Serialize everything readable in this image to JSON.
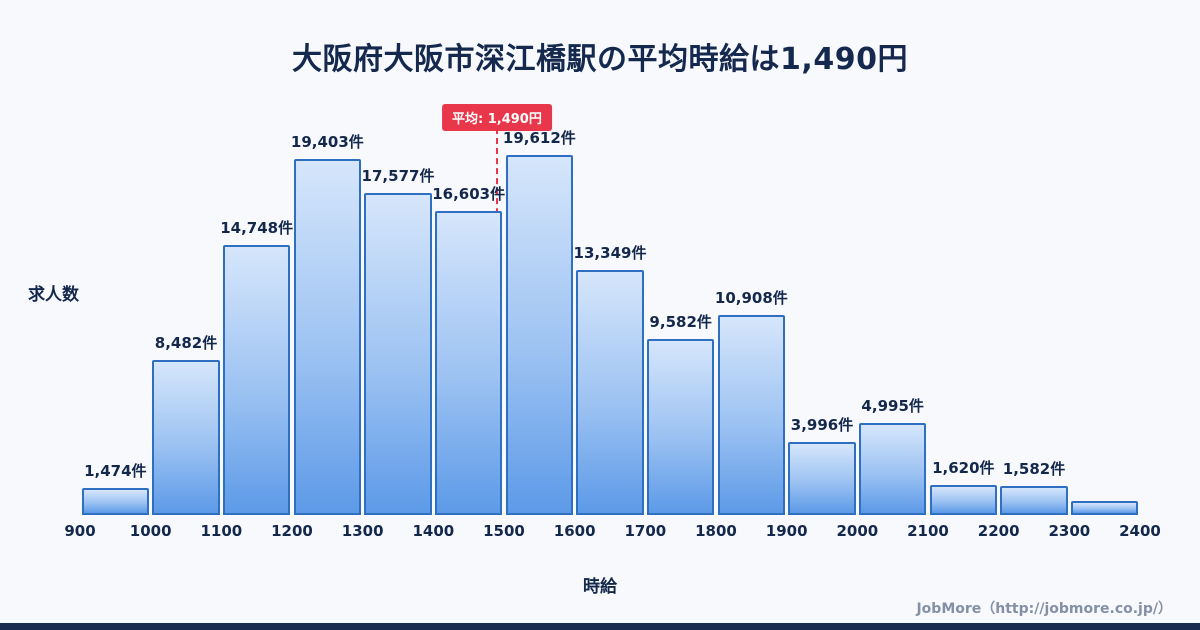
{
  "title": "大阪府大阪市深江橋駅の平均時給は1,490円",
  "footer": "JobMore（http://jobmore.co.jp/）",
  "chart_data": {
    "type": "bar",
    "title": "大阪府大阪市深江橋駅の平均時給は1,490円",
    "xlabel": "時給",
    "ylabel": "求人数",
    "x_ticks": [
      "900",
      "1000",
      "1100",
      "1200",
      "1300",
      "1400",
      "1500",
      "1600",
      "1700",
      "1800",
      "1900",
      "2000",
      "2100",
      "2200",
      "2300",
      "2400"
    ],
    "bins": [
      {
        "range": "900-1000",
        "value": 1474,
        "label": "1,474件"
      },
      {
        "range": "1000-1100",
        "value": 8482,
        "label": "8,482件"
      },
      {
        "range": "1100-1200",
        "value": 14748,
        "label": "14,748件"
      },
      {
        "range": "1200-1300",
        "value": 19403,
        "label": "19,403件"
      },
      {
        "range": "1300-1400",
        "value": 17577,
        "label": "17,577件"
      },
      {
        "range": "1400-1500",
        "value": 16603,
        "label": "16,603件"
      },
      {
        "range": "1500-1600",
        "value": 19612,
        "label": "19,612件"
      },
      {
        "range": "1600-1700",
        "value": 13349,
        "label": "13,349件"
      },
      {
        "range": "1700-1800",
        "value": 9582,
        "label": "9,582件"
      },
      {
        "range": "1800-1900",
        "value": 10908,
        "label": "10,908件"
      },
      {
        "range": "1900-2000",
        "value": 3996,
        "label": "3,996件"
      },
      {
        "range": "2000-2100",
        "value": 4995,
        "label": "4,995件"
      },
      {
        "range": "2100-2200",
        "value": 1620,
        "label": "1,620件"
      },
      {
        "range": "2200-2300",
        "value": 1582,
        "label": "1,582件"
      },
      {
        "range": "2300-2400",
        "value": 780,
        "label": ""
      }
    ],
    "average": 1490,
    "average_label": "平均: 1,490円",
    "xlim": [
      900,
      2400
    ],
    "ylim": [
      0,
      21000
    ],
    "grid": false,
    "legend": false,
    "colors": {
      "bar_fill_top": "#d6e6fb",
      "bar_fill_bottom": "#5d9ae8",
      "bar_border": "#2f6fc2",
      "average_line": "#e8374a",
      "text": "#14284c",
      "title": "#15294e",
      "background": "#f7f9fc",
      "footer_text": "#8490a6",
      "bottom_bar": "#1b2b4f"
    }
  }
}
